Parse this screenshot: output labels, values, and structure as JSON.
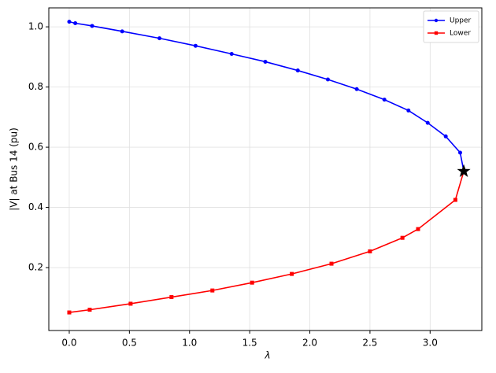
{
  "chart_data": {
    "type": "line",
    "x_label": "λ",
    "y_label": "|V| at Bus 14 (pu)",
    "xlim": [
      -0.17,
      3.43
    ],
    "ylim": [
      -0.009,
      1.063
    ],
    "xticks": [
      {
        "value": 0,
        "label": "0.0"
      },
      0.5,
      {
        "value": 1,
        "label": "1.0"
      },
      1.5,
      {
        "value": 2,
        "label": "2.0"
      },
      2.5,
      {
        "value": 3,
        "label": "3.0"
      }
    ],
    "yticks": [
      0.2,
      0.4,
      0.6,
      0.8,
      {
        "value": 1,
        "label": "1.0"
      }
    ],
    "grid": true,
    "legend": "upper right",
    "nose_marker": "star",
    "nose_color": "#000000",
    "series": [
      {
        "name": "Upper",
        "color": "#0000ff",
        "marker": "circle",
        "x": [
          0,
          0.05,
          0.19,
          0.44,
          0.75,
          1.05,
          1.35,
          1.63,
          1.9,
          2.15,
          2.39,
          2.62,
          2.82,
          2.98,
          3.13,
          3.25,
          3.28
        ],
        "values": [
          1.017,
          1.012,
          1.003,
          0.985,
          0.962,
          0.937,
          0.91,
          0.884,
          0.855,
          0.825,
          0.793,
          0.758,
          0.722,
          0.681,
          0.636,
          0.582,
          0.52
        ]
      },
      {
        "name": "Lower",
        "color": "#ff0000",
        "marker": "square",
        "x": [
          0,
          0.17,
          0.51,
          0.85,
          1.19,
          1.52,
          1.85,
          2.18,
          2.5,
          2.77,
          2.9,
          3.21,
          3.28
        ],
        "values": [
          0.051,
          0.06,
          0.08,
          0.102,
          0.124,
          0.15,
          0.179,
          0.213,
          0.254,
          0.299,
          0.328,
          0.425,
          0.52
        ]
      }
    ]
  }
}
